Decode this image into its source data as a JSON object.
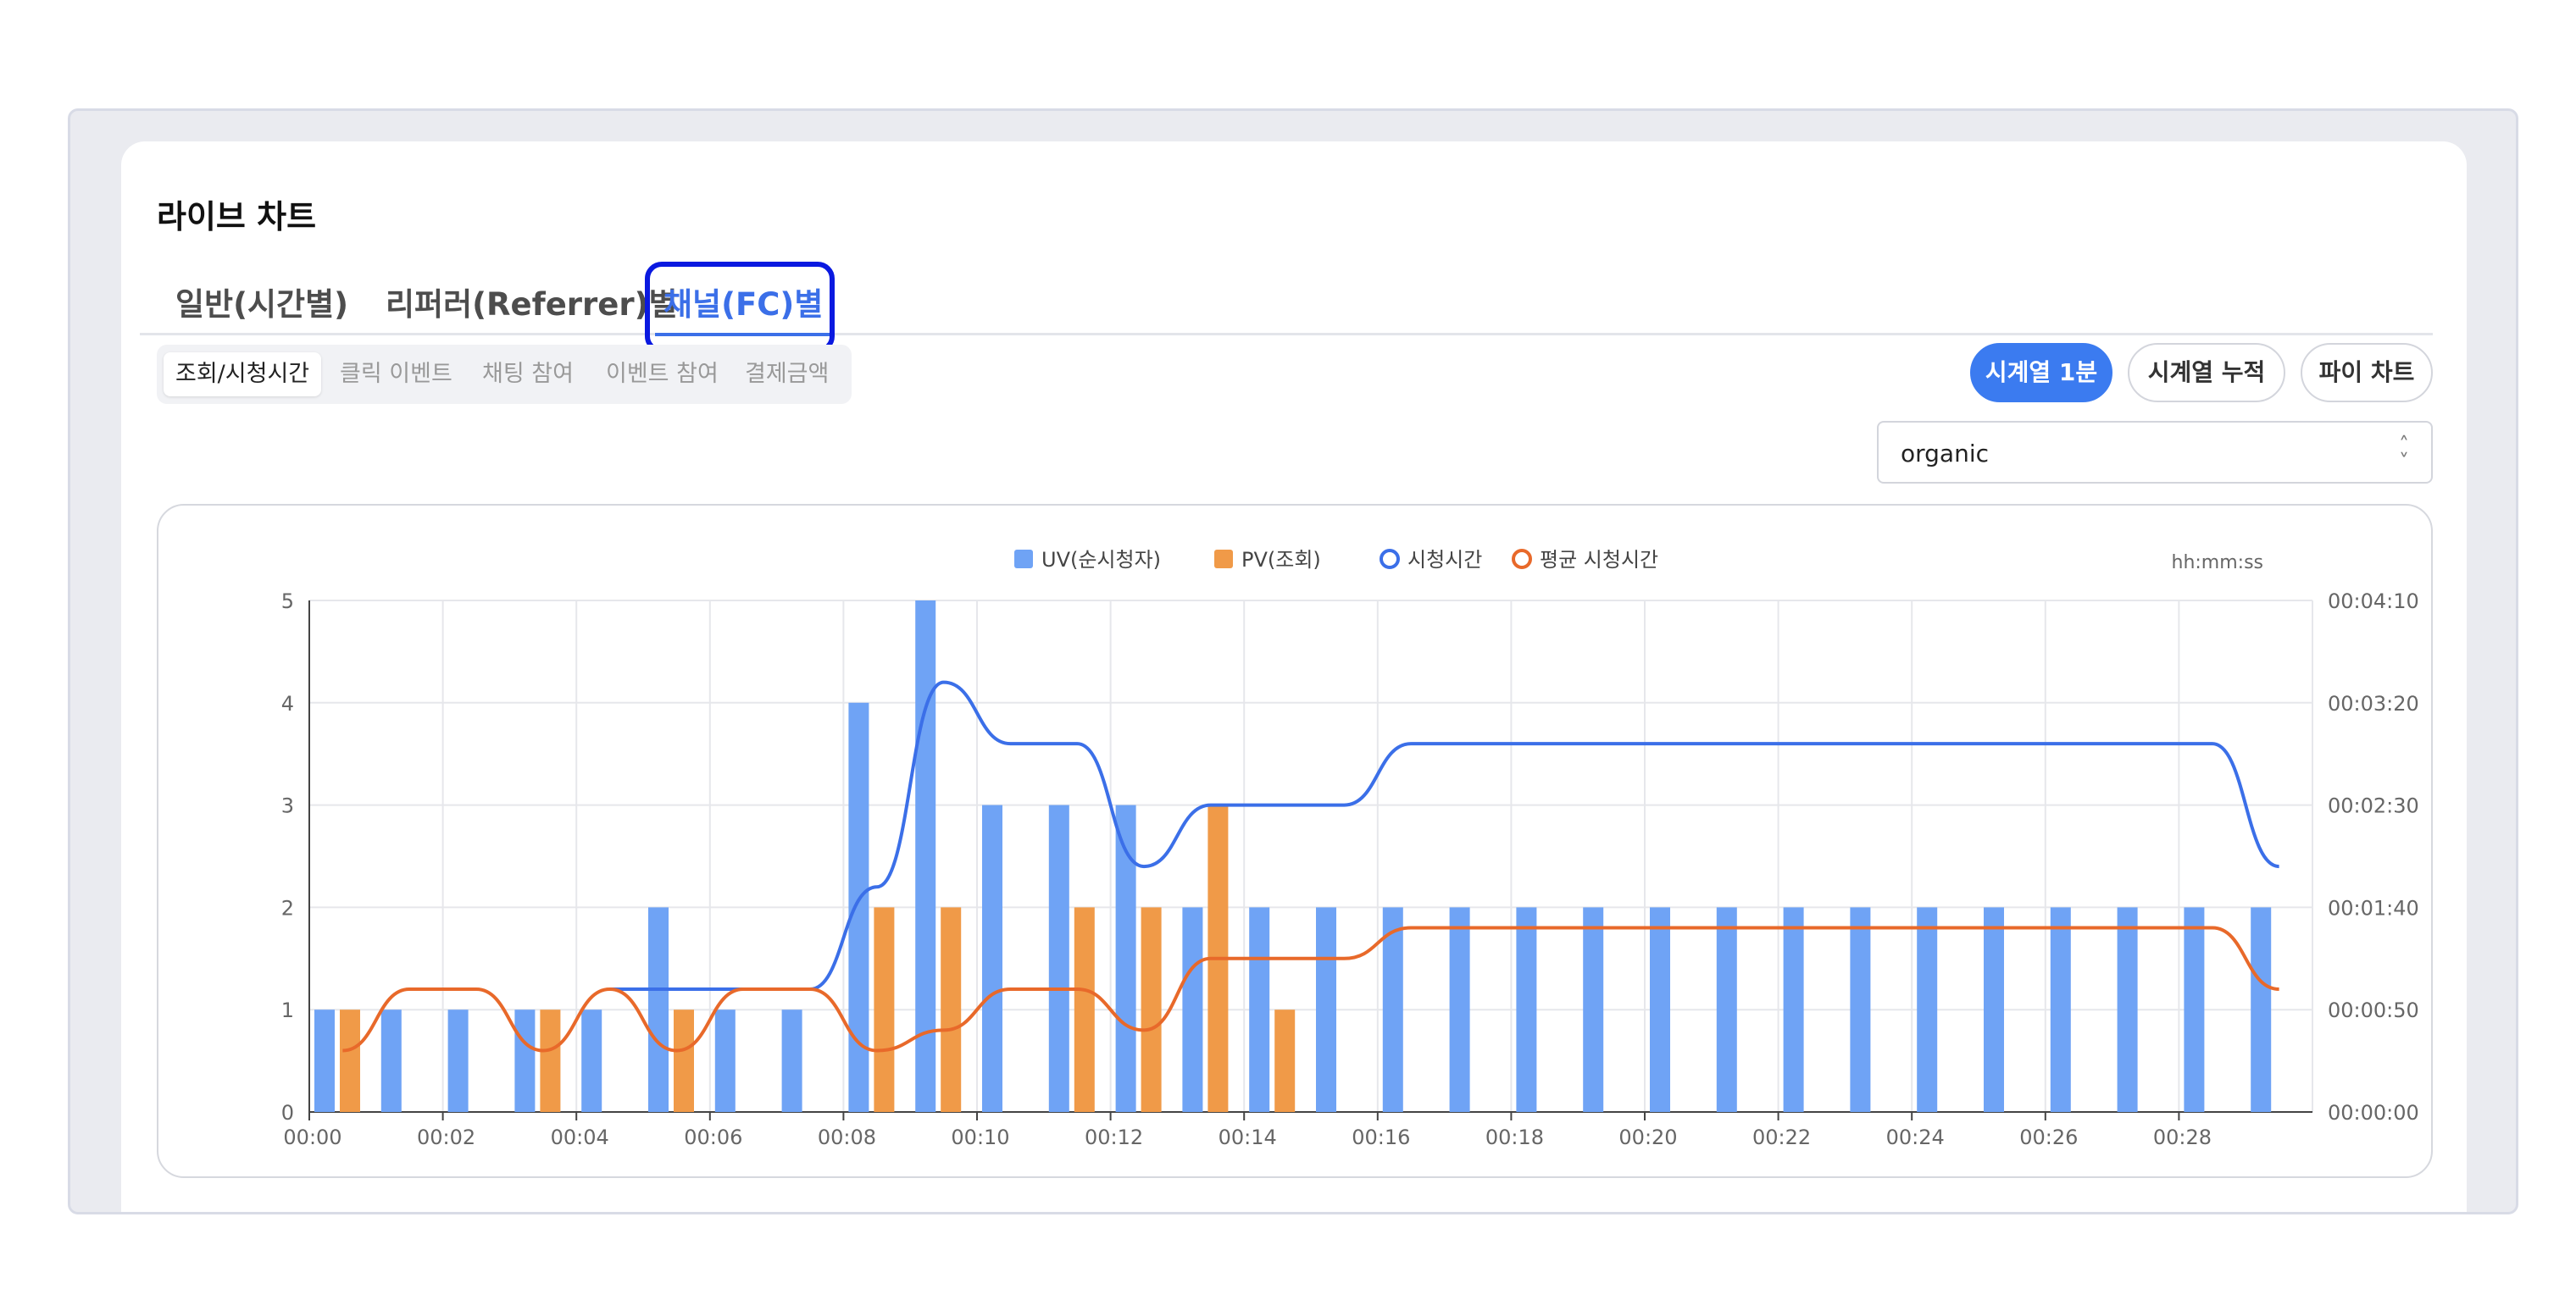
{
  "header": {
    "title": "라이브 차트"
  },
  "tabs": [
    {
      "label": "일반(시간별)"
    },
    {
      "label": "리퍼러(Referrer)별"
    },
    {
      "label": "채널(FC)별"
    }
  ],
  "subtabs": [
    {
      "label": "조회/시청시간"
    },
    {
      "label": "클릭 이벤트"
    },
    {
      "label": "채팅 참여"
    },
    {
      "label": "이벤트 참여"
    },
    {
      "label": "결제금액"
    }
  ],
  "view_buttons": [
    {
      "label": "시계열 1분"
    },
    {
      "label": "시계열 누적"
    },
    {
      "label": "파이 차트"
    }
  ],
  "channel_select": {
    "value": "organic"
  },
  "colors": {
    "uv": "#6fa3f5",
    "pv": "#f09a48",
    "watch": "#3b6fe8",
    "avg_watch": "#e8692a",
    "accent": "#3b7bf0",
    "highlight": "#0a19e0"
  },
  "chart_data": {
    "type": "bar",
    "right_axis_unit": "hh:mm:ss",
    "legend": [
      "UV(순시청자)",
      "PV(조회)",
      "시청시간",
      "평균 시청시간"
    ],
    "legend_position": "top-center",
    "x": [
      0,
      1,
      2,
      3,
      4,
      5,
      6,
      7,
      8,
      9,
      10,
      11,
      12,
      13,
      14,
      15,
      16,
      17,
      18,
      19,
      20,
      21,
      22,
      23,
      24,
      25,
      26,
      27,
      28,
      29
    ],
    "x_tick_labels": [
      "00:00",
      "00:02",
      "00:04",
      "00:06",
      "00:08",
      "00:10",
      "00:12",
      "00:14",
      "00:16",
      "00:18",
      "00:20",
      "00:22",
      "00:24",
      "00:26",
      "00:28"
    ],
    "y_left_ticks": [
      "0",
      "1",
      "2",
      "3",
      "4",
      "5"
    ],
    "y_left_lim": [
      0,
      5
    ],
    "y_right_ticks": [
      "00:00:00",
      "00:00:50",
      "00:01:40",
      "00:02:30",
      "00:03:20",
      "00:04:10"
    ],
    "y_right_lim_seconds": [
      0,
      250
    ],
    "grid": true,
    "series": [
      {
        "name": "UV(순시청자)",
        "type": "bar",
        "values": [
          1,
          1,
          1,
          1,
          1,
          2,
          1,
          1,
          4,
          5,
          3,
          3,
          3,
          2,
          2,
          2,
          2,
          2,
          2,
          2,
          2,
          2,
          2,
          2,
          2,
          2,
          2,
          2,
          2,
          2
        ]
      },
      {
        "name": "PV(조회)",
        "type": "bar",
        "values": [
          1,
          0,
          0,
          1,
          0,
          1,
          0,
          0,
          2,
          2,
          0,
          2,
          2,
          3,
          1,
          0,
          0,
          0,
          0,
          0,
          0,
          0,
          0,
          0,
          0,
          0,
          0,
          0,
          0,
          0
        ]
      },
      {
        "name": "시청시간",
        "type": "line",
        "axis": "right",
        "unit": "seconds",
        "values": [
          null,
          null,
          null,
          null,
          60,
          60,
          60,
          60,
          110,
          210,
          180,
          180,
          120,
          150,
          150,
          150,
          180,
          180,
          180,
          180,
          180,
          180,
          180,
          180,
          180,
          180,
          180,
          180,
          180,
          120
        ]
      },
      {
        "name": "평균 시청시간",
        "type": "line",
        "axis": "right",
        "unit": "seconds",
        "values": [
          30,
          60,
          60,
          30,
          60,
          30,
          60,
          60,
          30,
          40,
          60,
          60,
          40,
          75,
          75,
          75,
          90,
          90,
          90,
          90,
          90,
          90,
          90,
          90,
          90,
          90,
          90,
          90,
          90,
          60
        ]
      }
    ]
  }
}
